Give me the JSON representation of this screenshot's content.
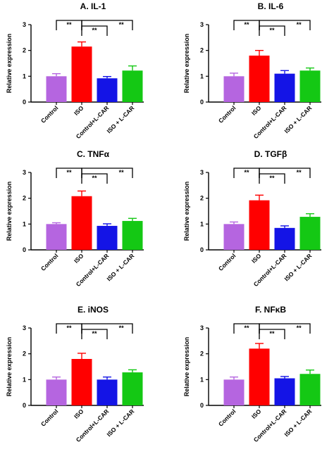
{
  "colors": {
    "purple": "#b565e0",
    "red": "#ff0000",
    "blue": "#1414e6",
    "green": "#14c814"
  },
  "chart_data": [
    {
      "type": "bar",
      "title": "A. IL-1",
      "ylabel": "Relative expression",
      "categories": [
        "Control",
        "ISO",
        "Control+L-CAR",
        "ISO + L-CAR"
      ],
      "yticks": [
        "0",
        "1",
        "2",
        "3"
      ],
      "ylim": [
        0,
        3
      ],
      "values": [
        1.0,
        2.15,
        0.92,
        1.22
      ],
      "errors": [
        0.1,
        0.18,
        0.07,
        0.18
      ],
      "significance": [
        "**",
        "**",
        "**"
      ]
    },
    {
      "type": "bar",
      "title": "B. IL-6",
      "ylabel": "Relative expression",
      "categories": [
        "Control",
        "ISO",
        "Control+L-CAR",
        "ISO + L-CAR"
      ],
      "yticks": [
        "0",
        "1",
        "2",
        "3"
      ],
      "ylim": [
        0,
        3
      ],
      "values": [
        1.0,
        1.8,
        1.1,
        1.22
      ],
      "errors": [
        0.12,
        0.2,
        0.12,
        0.1
      ],
      "significance": [
        "**",
        "**",
        "**"
      ]
    },
    {
      "type": "bar",
      "title": "C. TNFα",
      "ylabel": "Relative expression",
      "categories": [
        "Control",
        "ISO",
        "Control+L-CAR",
        "ISO + L-CAR"
      ],
      "yticks": [
        "0",
        "1",
        "2",
        "3"
      ],
      "ylim": [
        0,
        3
      ],
      "values": [
        1.0,
        2.08,
        0.93,
        1.12
      ],
      "errors": [
        0.05,
        0.2,
        0.08,
        0.1
      ],
      "significance": [
        "**",
        "**",
        "**"
      ]
    },
    {
      "type": "bar",
      "title": "D. TGFβ",
      "ylabel": "Relative expression",
      "categories": [
        "Control",
        "ISO",
        "Control+L-CAR",
        "ISO + L-CAR"
      ],
      "yticks": [
        "0",
        "1",
        "2",
        "3"
      ],
      "ylim": [
        0,
        3
      ],
      "values": [
        1.0,
        1.92,
        0.85,
        1.28
      ],
      "errors": [
        0.08,
        0.2,
        0.08,
        0.12
      ],
      "significance": [
        "**",
        "**",
        "**"
      ]
    },
    {
      "type": "bar",
      "title": "E. iNOS",
      "ylabel": "Relative expression",
      "categories": [
        "Control",
        "ISO",
        "Control+L-CAR",
        "ISO + L-CAR"
      ],
      "yticks": [
        "0",
        "1",
        "2",
        "3"
      ],
      "ylim": [
        0,
        3
      ],
      "values": [
        1.0,
        1.8,
        1.0,
        1.28
      ],
      "errors": [
        0.1,
        0.22,
        0.1,
        0.1
      ],
      "significance": [
        "**",
        "**",
        "**"
      ]
    },
    {
      "type": "bar",
      "title": "F. NFκB",
      "ylabel": "Relative expression",
      "categories": [
        "Control",
        "ISO",
        "Control+L-CAR",
        "ISO + L-CAR"
      ],
      "yticks": [
        "0",
        "1",
        "2",
        "3"
      ],
      "ylim": [
        0,
        3
      ],
      "values": [
        1.0,
        2.2,
        1.05,
        1.22
      ],
      "errors": [
        0.1,
        0.2,
        0.07,
        0.15
      ],
      "significance": [
        "**",
        "**",
        "**"
      ]
    }
  ]
}
